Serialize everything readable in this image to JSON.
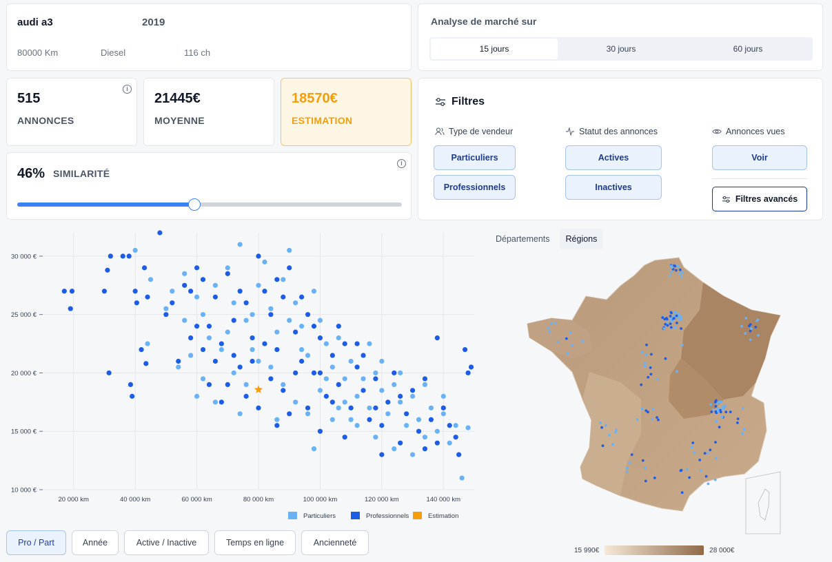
{
  "vehicle": {
    "model": "audi a3",
    "year": "2019",
    "km": "80000 Km",
    "fuel": "Diesel",
    "power": "116 ch"
  },
  "market": {
    "title": "Analyse de marché sur",
    "periods": [
      "15 jours",
      "30 jours",
      "60 jours"
    ],
    "selected": "15 jours"
  },
  "stats": {
    "ads_value": "515",
    "ads_label": "ANNONCES",
    "avg_value": "21445€",
    "avg_label": "MOYENNE",
    "est_value": "18570€",
    "est_label": "ESTIMATION"
  },
  "similarity": {
    "value": "46%",
    "label": "SIMILARITÉ",
    "level": 0.46
  },
  "filters": {
    "title": "Filtres",
    "seller_type": "Type de vendeur",
    "ad_status": "Statut des annonces",
    "seen_ads": "Annonces vues",
    "btn_particuliers": "Particuliers",
    "btn_professionnels": "Professionnels",
    "btn_actives": "Actives",
    "btn_inactives": "Inactives",
    "btn_voir": "Voir",
    "btn_advanced": "Filtres avancés"
  },
  "map": {
    "tabs": [
      "Départements",
      "Régions"
    ],
    "selected_tab": "Régions",
    "legend_min": "15 990€",
    "legend_max": "28 000€"
  },
  "bottom_tabs": [
    "Pro / Part",
    "Année",
    "Active / Inactive",
    "Temps en ligne",
    "Ancienneté"
  ],
  "bottom_selected": "Pro / Part",
  "colors": {
    "particuliers": "#6ab2f5",
    "professionnels": "#1d5ce6",
    "estimation": "#f59e0b",
    "accent": "#3b82f6"
  },
  "chart_data": {
    "type": "scatter",
    "xlim": [
      10000,
      150000
    ],
    "ylim": [
      10000,
      32000
    ],
    "x_ticks": [
      "20 000 km",
      "40 000 km",
      "60 000 km",
      "80 000 km",
      "100 000 km",
      "120 000 km",
      "140 000 km"
    ],
    "y_ticks": [
      "10 000 €",
      "15 000 €",
      "20 000 €",
      "25 000 €",
      "30 000 €"
    ],
    "legend": [
      "Particuliers",
      "Professionnels",
      "Estimation"
    ],
    "estimation_point": {
      "x": 80000,
      "y": 18570
    },
    "series": [
      {
        "name": "Particuliers",
        "points": [
          [
            40000,
            30500
          ],
          [
            45000,
            28000
          ],
          [
            52000,
            27000
          ],
          [
            56000,
            28500
          ],
          [
            60000,
            26500
          ],
          [
            62000,
            25000
          ],
          [
            64000,
            23000
          ],
          [
            66000,
            27500
          ],
          [
            70000,
            29000
          ],
          [
            72000,
            26000
          ],
          [
            74000,
            31000
          ],
          [
            76000,
            24500
          ],
          [
            78000,
            22000
          ],
          [
            80000,
            27500
          ],
          [
            82000,
            29500
          ],
          [
            84000,
            25500
          ],
          [
            86000,
            23500
          ],
          [
            88000,
            28000
          ],
          [
            90000,
            30500
          ],
          [
            92000,
            26000
          ],
          [
            94000,
            24000
          ],
          [
            96000,
            21500
          ],
          [
            98000,
            27000
          ],
          [
            100000,
            24500
          ],
          [
            102000,
            22500
          ],
          [
            104000,
            20500
          ],
          [
            106000,
            23000
          ],
          [
            108000,
            19500
          ],
          [
            110000,
            21000
          ],
          [
            112000,
            18000
          ],
          [
            114000,
            19500
          ],
          [
            116000,
            17000
          ],
          [
            118000,
            20000
          ],
          [
            120000,
            18500
          ],
          [
            122000,
            16500
          ],
          [
            124000,
            19000
          ],
          [
            126000,
            17500
          ],
          [
            128000,
            15500
          ],
          [
            130000,
            18000
          ],
          [
            132000,
            16000
          ],
          [
            134000,
            14500
          ],
          [
            136000,
            17000
          ],
          [
            138000,
            15000
          ],
          [
            140000,
            16500
          ],
          [
            142000,
            14000
          ],
          [
            144000,
            15500
          ],
          [
            146000,
            11000
          ],
          [
            148000,
            15300
          ],
          [
            44000,
            22500
          ],
          [
            54000,
            20500
          ],
          [
            58000,
            21500
          ],
          [
            62000,
            19500
          ],
          [
            68000,
            22000
          ],
          [
            72000,
            20000
          ],
          [
            76000,
            19000
          ],
          [
            80000,
            21000
          ],
          [
            84000,
            20500
          ],
          [
            88000,
            19000
          ],
          [
            92000,
            17500
          ],
          [
            96000,
            16500
          ],
          [
            100000,
            18500
          ],
          [
            104000,
            16000
          ],
          [
            108000,
            17500
          ],
          [
            112000,
            15500
          ],
          [
            118000,
            14500
          ],
          [
            124000,
            13500
          ],
          [
            130000,
            13000
          ],
          [
            98000,
            13500
          ],
          [
            86000,
            16000
          ],
          [
            74000,
            16500
          ],
          [
            66000,
            17500
          ],
          [
            60000,
            18000
          ],
          [
            56000,
            24500
          ],
          [
            50000,
            25500
          ],
          [
            70000,
            23500
          ],
          [
            78000,
            25000
          ],
          [
            90000,
            24500
          ],
          [
            94000,
            22000
          ],
          [
            102000,
            19500
          ],
          [
            106000,
            17000
          ],
          [
            110000,
            16000
          ],
          [
            116000,
            22500
          ],
          [
            120000,
            21000
          ],
          [
            126000,
            20000
          ],
          [
            134000,
            19000
          ],
          [
            140000,
            18000
          ]
        ]
      },
      {
        "name": "Professionnels",
        "points": [
          [
            17000,
            27000
          ],
          [
            19000,
            25500
          ],
          [
            19500,
            27000
          ],
          [
            30000,
            27000
          ],
          [
            31000,
            28800
          ],
          [
            32000,
            30000
          ],
          [
            31500,
            20000
          ],
          [
            36000,
            30000
          ],
          [
            38000,
            30000
          ],
          [
            38500,
            19000
          ],
          [
            39000,
            18000
          ],
          [
            40000,
            27000
          ],
          [
            40500,
            26000
          ],
          [
            42000,
            22000
          ],
          [
            43000,
            29000
          ],
          [
            43500,
            20800
          ],
          [
            44000,
            26500
          ],
          [
            48000,
            32000
          ],
          [
            50000,
            25000
          ],
          [
            52000,
            26000
          ],
          [
            54000,
            21000
          ],
          [
            56000,
            27500
          ],
          [
            58000,
            23000
          ],
          [
            60000,
            29000
          ],
          [
            62000,
            28000
          ],
          [
            64000,
            24000
          ],
          [
            66000,
            26500
          ],
          [
            68000,
            22500
          ],
          [
            70000,
            28500
          ],
          [
            72000,
            24500
          ],
          [
            74000,
            20500
          ],
          [
            76000,
            26000
          ],
          [
            78000,
            23000
          ],
          [
            80000,
            30000
          ],
          [
            82000,
            27000
          ],
          [
            84000,
            25000
          ],
          [
            86000,
            22000
          ],
          [
            88000,
            26500
          ],
          [
            90000,
            29000
          ],
          [
            92000,
            23500
          ],
          [
            94000,
            21000
          ],
          [
            96000,
            25000
          ],
          [
            98000,
            20000
          ],
          [
            100000,
            23000
          ],
          [
            102000,
            18000
          ],
          [
            104000,
            21500
          ],
          [
            106000,
            19000
          ],
          [
            108000,
            22500
          ],
          [
            110000,
            17000
          ],
          [
            112000,
            20500
          ],
          [
            114000,
            18500
          ],
          [
            116000,
            16000
          ],
          [
            118000,
            19500
          ],
          [
            120000,
            15500
          ],
          [
            122000,
            17500
          ],
          [
            124000,
            20000
          ],
          [
            126000,
            14000
          ],
          [
            128000,
            16500
          ],
          [
            130000,
            18500
          ],
          [
            132000,
            15000
          ],
          [
            134000,
            13500
          ],
          [
            136000,
            16000
          ],
          [
            138000,
            14000
          ],
          [
            140000,
            17000
          ],
          [
            142000,
            15500
          ],
          [
            144000,
            14500
          ],
          [
            145000,
            13000
          ],
          [
            147000,
            22000
          ],
          [
            148000,
            20000
          ],
          [
            149000,
            20500
          ],
          [
            138000,
            23000
          ],
          [
            64000,
            19000
          ],
          [
            68000,
            17500
          ],
          [
            70000,
            19000
          ],
          [
            72000,
            21500
          ],
          [
            76000,
            18000
          ],
          [
            80000,
            17000
          ],
          [
            84000,
            19500
          ],
          [
            86000,
            15500
          ],
          [
            88000,
            18500
          ],
          [
            90000,
            16500
          ],
          [
            92000,
            20000
          ],
          [
            96000,
            17000
          ],
          [
            100000,
            15000
          ],
          [
            104000,
            17500
          ],
          [
            108000,
            14500
          ],
          [
            114000,
            21500
          ],
          [
            120000,
            13000
          ],
          [
            126000,
            18000
          ],
          [
            60000,
            24000
          ],
          [
            66000,
            21000
          ],
          [
            78000,
            21000
          ],
          [
            82000,
            22500
          ],
          [
            94000,
            26500
          ],
          [
            100000,
            20000
          ],
          [
            106000,
            24000
          ],
          [
            112000,
            22500
          ],
          [
            118000,
            17000
          ],
          [
            134000,
            19500
          ],
          [
            58000,
            27000
          ],
          [
            62000,
            22000
          ],
          [
            74000,
            27000
          ],
          [
            86000,
            28000
          ],
          [
            98000,
            24000
          ]
        ]
      }
    ]
  }
}
